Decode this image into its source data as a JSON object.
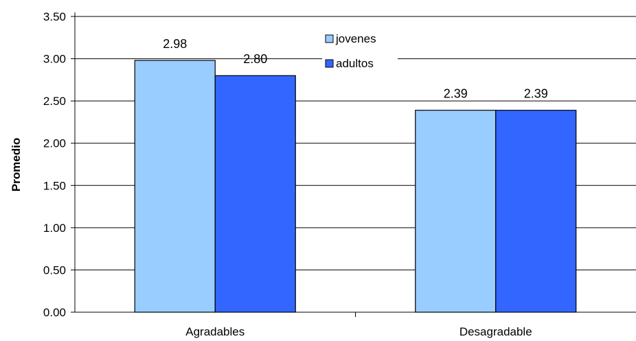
{
  "chart_data": {
    "type": "bar",
    "categories": [
      "Agradables",
      "Desagradable"
    ],
    "series": [
      {
        "name": "jovenes",
        "values": [
          2.98,
          2.39
        ],
        "color": "#99ccff"
      },
      {
        "name": "adultos",
        "values": [
          2.8,
          2.39
        ],
        "color": "#3366ff"
      }
    ],
    "data_labels": [
      [
        "2.98",
        "2.39"
      ],
      [
        "2.80",
        "2.39"
      ]
    ],
    "ylabel": "Promedio",
    "ylim": [
      0,
      3.5
    ],
    "yticks": [
      "0.00",
      "0.50",
      "1.00",
      "1.50",
      "2.00",
      "2.50",
      "3.00",
      "3.50"
    ],
    "grid": true,
    "legend": "top-center"
  }
}
